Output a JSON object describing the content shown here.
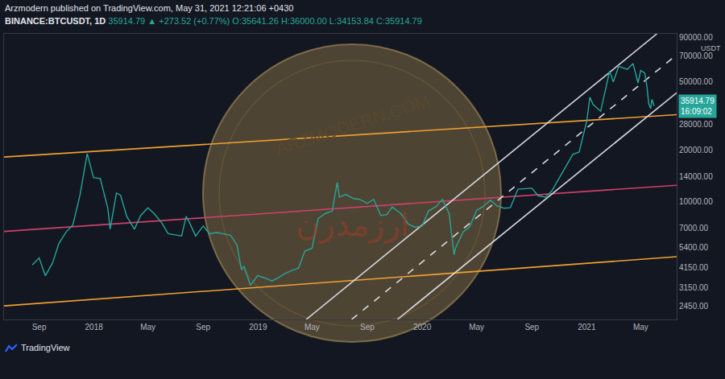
{
  "chart_data": {
    "type": "line",
    "header": {
      "published": "Arzmodern published on TradingView.com, May 31, 2021 12:21:06 +0430",
      "symbol": "BINANCE:BTCUSDT, 1D",
      "change": "35914.79 ▲ +273.52 (+0.77%)",
      "ohlc": "O:35641.26 H:36000.00 L:34153.84 C:35914.79"
    },
    "watermark": {
      "site": "ARZMODERN.COM",
      "name": "ارزمدرن"
    },
    "footer": "TradingView",
    "y_unit": "USDT",
    "countdown": "16:09:02",
    "log": "y",
    "grid": false,
    "color": "#26a69a",
    "x": [
      "2017-08-17",
      "2017-09-01",
      "2017-09-15",
      "2017-10-01",
      "2017-10-15",
      "2017-11-01",
      "2017-11-15",
      "2017-12-01",
      "2017-12-17",
      "2017-12-31",
      "2018-01-15",
      "2018-02-01",
      "2018-02-06",
      "2018-02-20",
      "2018-03-01",
      "2018-03-15",
      "2018-04-01",
      "2018-04-15",
      "2018-05-01",
      "2018-05-15",
      "2018-06-01",
      "2018-06-15",
      "2018-07-01",
      "2018-07-15",
      "2018-07-25",
      "2018-08-01",
      "2018-08-15",
      "2018-09-01",
      "2018-09-15",
      "2018-10-01",
      "2018-10-15",
      "2018-11-01",
      "2018-11-15",
      "2018-11-25",
      "2018-12-01",
      "2018-12-15",
      "2018-12-31",
      "2019-01-15",
      "2019-02-01",
      "2019-02-15",
      "2019-03-01",
      "2019-03-15",
      "2019-04-01",
      "2019-04-15",
      "2019-05-01",
      "2019-05-15",
      "2019-06-01",
      "2019-06-15",
      "2019-06-26",
      "2019-07-01",
      "2019-07-15",
      "2019-08-01",
      "2019-08-15",
      "2019-09-01",
      "2019-09-15",
      "2019-10-01",
      "2019-10-15",
      "2019-10-26",
      "2019-11-15",
      "2019-12-01",
      "2019-12-15",
      "2020-01-01",
      "2020-01-15",
      "2020-02-01",
      "2020-02-15",
      "2020-03-01",
      "2020-03-12",
      "2020-03-15",
      "2020-04-01",
      "2020-04-15",
      "2020-05-01",
      "2020-05-15",
      "2020-06-01",
      "2020-06-15",
      "2020-07-01",
      "2020-07-15",
      "2020-08-01",
      "2020-08-15",
      "2020-09-01",
      "2020-09-15",
      "2020-10-01",
      "2020-10-15",
      "2020-11-01",
      "2020-11-15",
      "2020-12-01",
      "2020-12-15",
      "2021-01-01",
      "2021-01-08",
      "2021-01-15",
      "2021-02-01",
      "2021-02-15",
      "2021-02-21",
      "2021-03-01",
      "2021-03-13",
      "2021-04-01",
      "2021-04-14",
      "2021-04-25",
      "2021-05-01",
      "2021-05-10",
      "2021-05-15",
      "2021-05-19",
      "2021-05-23",
      "2021-05-26",
      "2021-05-31"
    ],
    "values": [
      4280,
      4700,
      3700,
      4400,
      5700,
      6700,
      7300,
      10900,
      19000,
      13800,
      13600,
      9100,
      6900,
      11200,
      10900,
      8200,
      6900,
      8300,
      9200,
      8500,
      7500,
      6500,
      6400,
      6300,
      8200,
      7600,
      6300,
      7200,
      6500,
      6600,
      6500,
      6350,
      5600,
      4000,
      4200,
      3250,
      3700,
      3600,
      3450,
      3600,
      3800,
      3950,
      4100,
      5150,
      5350,
      8000,
      8550,
      8800,
      12900,
      10600,
      11000,
      10400,
      10300,
      9750,
      10300,
      8300,
      8400,
      9300,
      8500,
      7400,
      7100,
      7200,
      8800,
      9350,
      10300,
      8500,
      4900,
      5350,
      6650,
      7100,
      8850,
      9350,
      10200,
      9450,
      9150,
      9200,
      11800,
      11900,
      11950,
      10800,
      10600,
      11500,
      13750,
      16000,
      18800,
      19400,
      29300,
      40500,
      36700,
      33500,
      48600,
      57500,
      49600,
      61200,
      58700,
      63500,
      49000,
      57800,
      56000,
      46400,
      37000,
      34700,
      39300,
      35914.79
    ],
    "lines": [
      {
        "x": [
          "2017-06-15",
          "2021-07-20"
        ],
        "values": [
          18150,
          32000
        ],
        "color": "#f0a030",
        "line_style": "solid"
      },
      {
        "x": [
          "2017-06-15",
          "2021-07-20"
        ],
        "values": [
          6700,
          12440
        ],
        "color": "#d0406a",
        "line_style": "solid"
      },
      {
        "x": [
          "2017-06-15",
          "2021-07-20"
        ],
        "values": [
          2470,
          4775
        ],
        "color": "#f0a030",
        "line_style": "solid"
      },
      {
        "x": [
          "2019-04-18",
          "2021-06-06"
        ],
        "values": [
          2060,
          94600
        ],
        "color": "#d8dae0",
        "line_style": "solid"
      },
      {
        "x": [
          "2019-07-28",
          "2021-07-20"
        ],
        "values": [
          2060,
          71400
        ],
        "color": "#d8dae0",
        "line_style": "dashed"
      },
      {
        "x": [
          "2019-11-07",
          "2021-07-20"
        ],
        "values": [
          2060,
          42950
        ],
        "color": "#d8dae0",
        "line_style": "solid"
      }
    ],
    "xlim": [
      "2017-06-15",
      "2021-07-20"
    ],
    "ylim": [
      2060,
      94600
    ],
    "xticks": [
      {
        "value": "2017-09-01",
        "label": "Sep"
      },
      {
        "value": "2018-01-01",
        "label": "2018"
      },
      {
        "value": "2018-05-01",
        "label": "May"
      },
      {
        "value": "2018-09-01",
        "label": "Sep"
      },
      {
        "value": "2019-01-01",
        "label": "2019"
      },
      {
        "value": "2019-05-01",
        "label": "May"
      },
      {
        "value": "2019-09-01",
        "label": "Sep"
      },
      {
        "value": "2020-01-01",
        "label": "2020"
      },
      {
        "value": "2020-05-01",
        "label": "May"
      },
      {
        "value": "2020-09-01",
        "label": "Sep"
      },
      {
        "value": "2021-01-01",
        "label": "2021"
      },
      {
        "value": "2021-05-01",
        "label": "May"
      }
    ],
    "yticks": [
      {
        "value": 90000,
        "label": "90000.00"
      },
      {
        "value": 70000,
        "label": "70000.00"
      },
      {
        "value": 50000,
        "label": "50000.00"
      },
      {
        "value": 28000,
        "label": "28000.00"
      },
      {
        "value": 20000,
        "label": "20000.00"
      },
      {
        "value": 14000,
        "label": "14000.00"
      },
      {
        "value": 10000,
        "label": "10000.00"
      },
      {
        "value": 7000,
        "label": "7000.00"
      },
      {
        "value": 5400,
        "label": "5400.00"
      },
      {
        "value": 4150,
        "label": "4150.00"
      },
      {
        "value": 3150,
        "label": "3150.00"
      },
      {
        "value": 2450,
        "label": "2450.00"
      }
    ]
  }
}
